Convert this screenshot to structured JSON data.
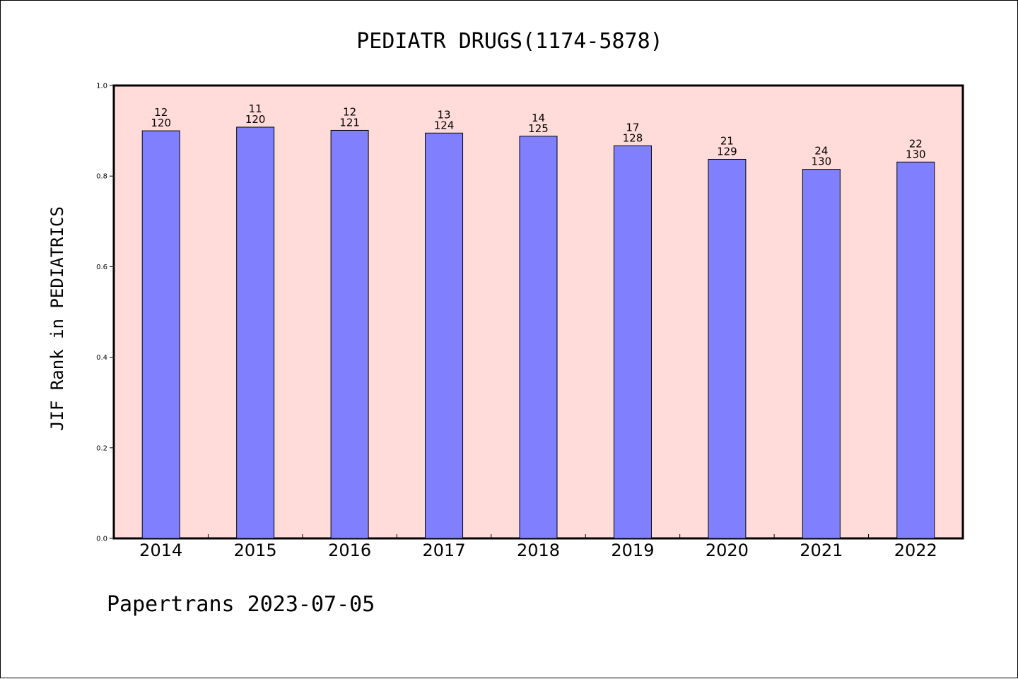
{
  "chart_data": {
    "type": "bar",
    "title": "PEDIATR DRUGS(1174-5878)",
    "ylabel": "JIF Rank in PEDIATRICS",
    "footer": "Papertrans 2023-07-05",
    "categories": [
      "2014",
      "2015",
      "2016",
      "2017",
      "2018",
      "2019",
      "2020",
      "2021",
      "2022"
    ],
    "values": [
      0.9,
      0.908,
      0.901,
      0.895,
      0.888,
      0.867,
      0.837,
      0.815,
      0.831
    ],
    "ranks": [
      "12",
      "11",
      "12",
      "13",
      "14",
      "17",
      "21",
      "24",
      "22"
    ],
    "totals": [
      "120",
      "120",
      "121",
      "124",
      "125",
      "128",
      "129",
      "130",
      "130"
    ],
    "ylim": [
      0,
      1.0
    ],
    "yticks": [
      "0.0",
      "0.2",
      "0.4",
      "0.6",
      "0.8",
      "1.0"
    ],
    "grid": false,
    "colors": {
      "plot_background": "#ffdcda",
      "bar_fill": "#8080ff",
      "bar_edge": "#000000"
    }
  }
}
